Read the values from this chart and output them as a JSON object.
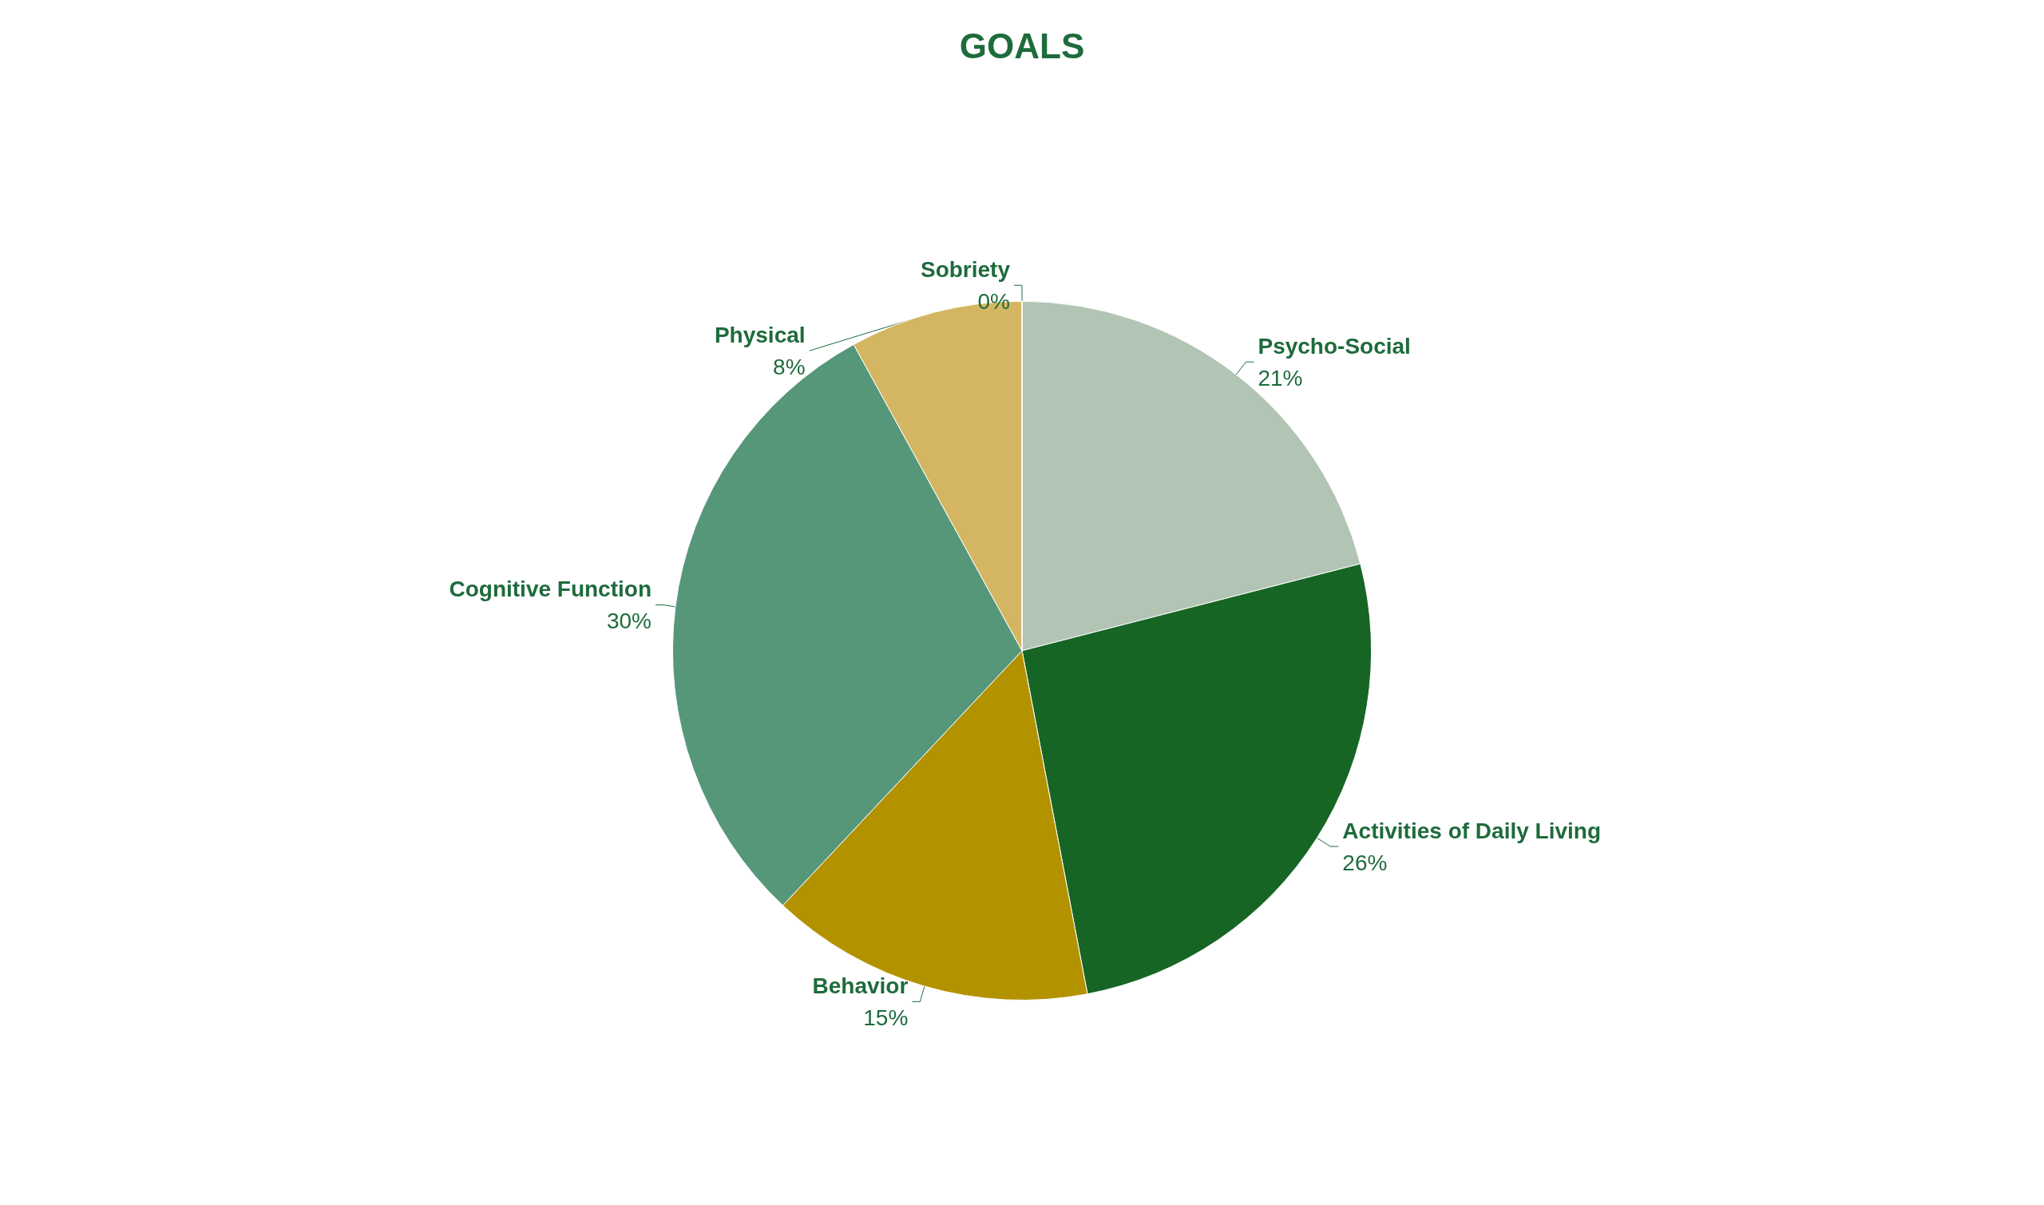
{
  "chart_data": {
    "type": "pie",
    "title": "GOALS",
    "categories": [
      "Psycho-Social",
      "Activities of Daily Living",
      "Behavior",
      "Cognitive Function",
      "Physical",
      "Sobriety"
    ],
    "values": [
      21,
      26,
      15,
      30,
      8,
      0
    ],
    "value_labels": [
      "21%",
      "26%",
      "15%",
      "30%",
      "8%",
      "0%"
    ],
    "colors": [
      "#b2c4b4",
      "#176524",
      "#b39200",
      "#56977a",
      "#d4b662",
      "#7fa88c"
    ],
    "legend": false
  }
}
